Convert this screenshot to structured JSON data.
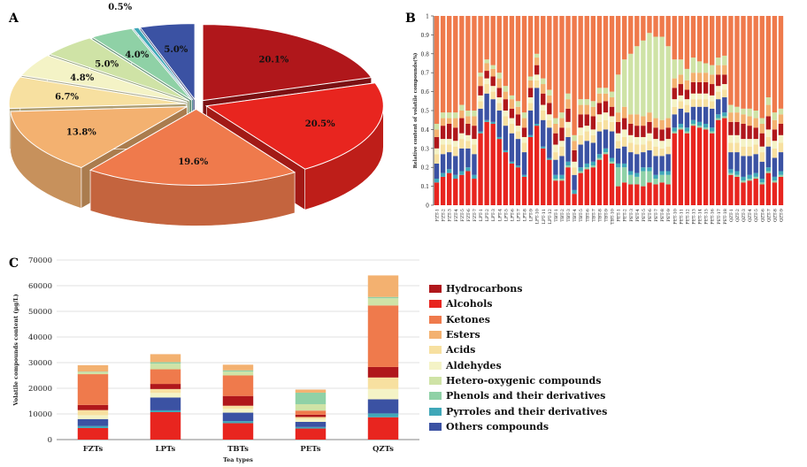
{
  "panels": {
    "a": "A",
    "b": "B",
    "c": "C"
  },
  "categories": [
    {
      "name": "Hydrocarbons",
      "color": "#b0171b"
    },
    {
      "name": "Alcohols",
      "color": "#e8251f"
    },
    {
      "name": "Ketones",
      "color": "#ef7a4c"
    },
    {
      "name": "Esters",
      "color": "#f3b170"
    },
    {
      "name": "Acids",
      "color": "#f7e0a0"
    },
    {
      "name": "Aldehydes",
      "color": "#f4f3c6"
    },
    {
      "name": "Hetero-oxygenic compounds",
      "color": "#cfe3a6"
    },
    {
      "name": "Phenols and their derivatives",
      "color": "#8fd1a6"
    },
    {
      "name": "Pyrroles and their derivatives",
      "color": "#3fa7b8"
    },
    {
      "name": "Others compounds",
      "color": "#3b52a3"
    }
  ],
  "chart_data": [
    {
      "panel": "A",
      "type": "pie",
      "slices": [
        {
          "category": "Hydrocarbons",
          "value": 20.1,
          "label": "20.1%"
        },
        {
          "category": "Alcohols",
          "value": 20.5,
          "label": "20.5%"
        },
        {
          "category": "Ketones",
          "value": 19.6,
          "label": "19.6%"
        },
        {
          "category": "Esters",
          "value": 13.8,
          "label": "13.8%"
        },
        {
          "category": "Acids",
          "value": 6.7,
          "label": "6.7%"
        },
        {
          "category": "Aldehydes",
          "value": 4.8,
          "label": "4.8%"
        },
        {
          "category": "Hetero-oxygenic compounds",
          "value": 5.0,
          "label": "5.0%"
        },
        {
          "category": "Phenols and their derivatives",
          "value": 4.0,
          "label": "4.0%"
        },
        {
          "category": "Pyrroles and their derivatives",
          "value": 0.5,
          "label": "0.5%"
        },
        {
          "category": "Others compounds",
          "value": 5.0,
          "label": "5.0%"
        }
      ]
    },
    {
      "panel": "B",
      "type": "bar",
      "stacked": true,
      "normalized": true,
      "ylabel": "Relative content of volatile compounds(%)",
      "ylim": [
        0,
        1
      ],
      "yticks": [
        "0",
        "0.1",
        "0.2",
        "0.3",
        "0.4",
        "0.5",
        "0.6",
        "0.7",
        "0.8",
        "0.9",
        "1"
      ],
      "categories": [
        "FZT-1",
        "FZT-2",
        "FZT-3",
        "FZT-4",
        "FZT-5",
        "FZT-6",
        "FZT-7",
        "LPT-1",
        "LPT-2",
        "LPT-3",
        "LPT-4",
        "LPT-5",
        "LPT-6",
        "LPT-7",
        "LPT-8",
        "LPT-9",
        "LPT-10",
        "LPT-11",
        "LPT-12",
        "TBT-1",
        "TBT-2",
        "TBT-3",
        "TBT-4",
        "TBT-5",
        "TBT-6",
        "TBT-7",
        "TBT-8",
        "TBT-9",
        "TBT-10",
        "PET-1",
        "PET-2",
        "PET-3",
        "PET-4",
        "PET-5",
        "PET-6",
        "PET-7",
        "PET-8",
        "PET-9",
        "PET-10",
        "PET-11",
        "PET-12",
        "PET-13",
        "PET-14",
        "PET-15",
        "PET-16",
        "PET-17",
        "PET-18",
        "QZT-1",
        "QZT-2",
        "QZT-3",
        "QZT-4",
        "QZT-5",
        "QZT-6",
        "QZT-7",
        "QZT-8",
        "QZT-9"
      ],
      "series_order": [
        "Alcohols",
        "Phenols and their derivatives",
        "Pyrroles and their derivatives",
        "Others compounds",
        "Acids",
        "Aldehydes",
        "Hydrocarbons",
        "Esters",
        "Hetero-oxygenic compounds",
        "Ketones"
      ],
      "values": [
        [
          0.12,
          0.0,
          0.02,
          0.08,
          0.05,
          0.03,
          0.06,
          0.04,
          0.03,
          0.57
        ],
        [
          0.15,
          0.0,
          0.02,
          0.1,
          0.05,
          0.03,
          0.07,
          0.04,
          0.03,
          0.51
        ],
        [
          0.17,
          0.0,
          0.02,
          0.09,
          0.04,
          0.03,
          0.08,
          0.03,
          0.03,
          0.51
        ],
        [
          0.14,
          0.0,
          0.02,
          0.1,
          0.05,
          0.03,
          0.07,
          0.05,
          0.03,
          0.51
        ],
        [
          0.16,
          0.0,
          0.02,
          0.12,
          0.05,
          0.03,
          0.08,
          0.04,
          0.03,
          0.47
        ],
        [
          0.18,
          0.0,
          0.02,
          0.1,
          0.04,
          0.03,
          0.06,
          0.04,
          0.03,
          0.5
        ],
        [
          0.14,
          0.0,
          0.02,
          0.11,
          0.05,
          0.03,
          0.07,
          0.05,
          0.03,
          0.5
        ],
        [
          0.38,
          0.0,
          0.01,
          0.12,
          0.04,
          0.03,
          0.05,
          0.05,
          0.02,
          0.3
        ],
        [
          0.44,
          0.0,
          0.01,
          0.14,
          0.05,
          0.03,
          0.04,
          0.04,
          0.02,
          0.23
        ],
        [
          0.43,
          0.0,
          0.01,
          0.12,
          0.04,
          0.03,
          0.05,
          0.04,
          0.02,
          0.26
        ],
        [
          0.35,
          0.0,
          0.01,
          0.14,
          0.04,
          0.03,
          0.05,
          0.05,
          0.03,
          0.3
        ],
        [
          0.28,
          0.0,
          0.01,
          0.13,
          0.05,
          0.03,
          0.06,
          0.04,
          0.03,
          0.37
        ],
        [
          0.22,
          0.0,
          0.01,
          0.15,
          0.05,
          0.03,
          0.05,
          0.05,
          0.02,
          0.42
        ],
        [
          0.2,
          0.0,
          0.01,
          0.14,
          0.04,
          0.03,
          0.06,
          0.04,
          0.03,
          0.45
        ],
        [
          0.15,
          0.0,
          0.01,
          0.12,
          0.05,
          0.03,
          0.05,
          0.05,
          0.03,
          0.51
        ],
        [
          0.36,
          0.0,
          0.01,
          0.13,
          0.04,
          0.03,
          0.05,
          0.04,
          0.02,
          0.32
        ],
        [
          0.42,
          0.0,
          0.01,
          0.19,
          0.04,
          0.03,
          0.05,
          0.04,
          0.02,
          0.2
        ],
        [
          0.3,
          0.0,
          0.01,
          0.14,
          0.05,
          0.03,
          0.06,
          0.05,
          0.03,
          0.33
        ],
        [
          0.24,
          0.0,
          0.01,
          0.16,
          0.04,
          0.03,
          0.06,
          0.04,
          0.03,
          0.39
        ],
        [
          0.13,
          0.01,
          0.02,
          0.08,
          0.04,
          0.04,
          0.06,
          0.05,
          0.03,
          0.54
        ],
        [
          0.13,
          0.01,
          0.02,
          0.1,
          0.05,
          0.03,
          0.07,
          0.05,
          0.03,
          0.51
        ],
        [
          0.2,
          0.01,
          0.02,
          0.13,
          0.05,
          0.03,
          0.07,
          0.05,
          0.03,
          0.41
        ],
        [
          0.06,
          0.0,
          0.02,
          0.08,
          0.04,
          0.03,
          0.06,
          0.05,
          0.03,
          0.63
        ],
        [
          0.17,
          0.01,
          0.02,
          0.12,
          0.05,
          0.04,
          0.07,
          0.05,
          0.03,
          0.44
        ],
        [
          0.19,
          0.01,
          0.02,
          0.12,
          0.05,
          0.03,
          0.06,
          0.05,
          0.03,
          0.44
        ],
        [
          0.2,
          0.01,
          0.02,
          0.1,
          0.04,
          0.03,
          0.07,
          0.05,
          0.03,
          0.45
        ],
        [
          0.24,
          0.01,
          0.02,
          0.12,
          0.05,
          0.04,
          0.06,
          0.05,
          0.03,
          0.38
        ],
        [
          0.27,
          0.01,
          0.02,
          0.1,
          0.05,
          0.04,
          0.06,
          0.04,
          0.03,
          0.38
        ],
        [
          0.22,
          0.01,
          0.02,
          0.14,
          0.05,
          0.03,
          0.05,
          0.05,
          0.03,
          0.4
        ],
        [
          0.1,
          0.1,
          0.02,
          0.08,
          0.04,
          0.04,
          0.06,
          0.05,
          0.2,
          0.31
        ],
        [
          0.12,
          0.08,
          0.02,
          0.09,
          0.05,
          0.04,
          0.06,
          0.06,
          0.25,
          0.23
        ],
        [
          0.11,
          0.05,
          0.02,
          0.1,
          0.05,
          0.04,
          0.06,
          0.05,
          0.32,
          0.2
        ],
        [
          0.11,
          0.04,
          0.02,
          0.1,
          0.05,
          0.04,
          0.06,
          0.06,
          0.36,
          0.16
        ],
        [
          0.1,
          0.08,
          0.02,
          0.08,
          0.04,
          0.04,
          0.06,
          0.05,
          0.4,
          0.13
        ],
        [
          0.12,
          0.06,
          0.02,
          0.09,
          0.05,
          0.04,
          0.06,
          0.05,
          0.42,
          0.09
        ],
        [
          0.11,
          0.03,
          0.02,
          0.1,
          0.05,
          0.04,
          0.06,
          0.05,
          0.43,
          0.11
        ],
        [
          0.12,
          0.04,
          0.02,
          0.08,
          0.04,
          0.04,
          0.06,
          0.05,
          0.44,
          0.11
        ],
        [
          0.11,
          0.05,
          0.02,
          0.09,
          0.04,
          0.04,
          0.06,
          0.05,
          0.38,
          0.16
        ],
        [
          0.38,
          0.01,
          0.02,
          0.07,
          0.04,
          0.04,
          0.06,
          0.05,
          0.1,
          0.23
        ],
        [
          0.4,
          0.01,
          0.02,
          0.08,
          0.04,
          0.03,
          0.06,
          0.05,
          0.08,
          0.23
        ],
        [
          0.38,
          0.01,
          0.02,
          0.08,
          0.04,
          0.03,
          0.05,
          0.05,
          0.06,
          0.28
        ],
        [
          0.42,
          0.01,
          0.02,
          0.07,
          0.04,
          0.03,
          0.06,
          0.05,
          0.08,
          0.22
        ],
        [
          0.41,
          0.01,
          0.02,
          0.08,
          0.04,
          0.03,
          0.06,
          0.05,
          0.06,
          0.24
        ],
        [
          0.4,
          0.01,
          0.02,
          0.09,
          0.04,
          0.03,
          0.06,
          0.05,
          0.05,
          0.25
        ],
        [
          0.38,
          0.01,
          0.02,
          0.1,
          0.04,
          0.03,
          0.06,
          0.05,
          0.05,
          0.26
        ],
        [
          0.45,
          0.01,
          0.02,
          0.08,
          0.04,
          0.03,
          0.06,
          0.05,
          0.04,
          0.22
        ],
        [
          0.46,
          0.01,
          0.02,
          0.08,
          0.04,
          0.03,
          0.05,
          0.05,
          0.05,
          0.21
        ],
        [
          0.16,
          0.01,
          0.02,
          0.09,
          0.05,
          0.04,
          0.07,
          0.05,
          0.04,
          0.47
        ],
        [
          0.15,
          0.01,
          0.02,
          0.1,
          0.05,
          0.04,
          0.07,
          0.05,
          0.03,
          0.48
        ],
        [
          0.12,
          0.01,
          0.02,
          0.11,
          0.05,
          0.04,
          0.08,
          0.05,
          0.03,
          0.49
        ],
        [
          0.13,
          0.01,
          0.02,
          0.1,
          0.05,
          0.04,
          0.07,
          0.05,
          0.04,
          0.49
        ],
        [
          0.14,
          0.01,
          0.02,
          0.1,
          0.05,
          0.03,
          0.06,
          0.05,
          0.04,
          0.5
        ],
        [
          0.11,
          0.01,
          0.02,
          0.09,
          0.05,
          0.03,
          0.07,
          0.05,
          0.03,
          0.54
        ],
        [
          0.17,
          0.01,
          0.02,
          0.11,
          0.05,
          0.04,
          0.07,
          0.06,
          0.04,
          0.43
        ],
        [
          0.12,
          0.01,
          0.02,
          0.1,
          0.05,
          0.04,
          0.06,
          0.05,
          0.04,
          0.51
        ],
        [
          0.15,
          0.01,
          0.02,
          0.1,
          0.05,
          0.04,
          0.06,
          0.05,
          0.03,
          0.49
        ]
      ]
    },
    {
      "panel": "C",
      "type": "bar",
      "stacked": true,
      "xlabel": "Tea types",
      "ylabel": "Volatile compounds content (μg/L)",
      "ylim": [
        0,
        70000
      ],
      "yticks": [
        "0",
        "10000",
        "20000",
        "30000",
        "40000",
        "50000",
        "60000",
        "70000"
      ],
      "categories": [
        "FZTs",
        "LPTs",
        "TBTs",
        "PETs",
        "QZTs"
      ],
      "series_order": [
        "Alcohols",
        "Pyrroles and their derivatives",
        "Others compounds",
        "Aldehydes",
        "Acids",
        "Hydrocarbons",
        "Ketones",
        "Hetero-oxygenic compounds",
        "Phenols and their derivatives",
        "Esters"
      ],
      "values": [
        [
          4500,
          800,
          2700,
          1500,
          2000,
          2000,
          12000,
          800,
          200,
          2500
        ],
        [
          10700,
          700,
          5000,
          1800,
          1500,
          2000,
          5700,
          2200,
          600,
          3100
        ],
        [
          6400,
          800,
          3300,
          1500,
          1200,
          3800,
          8000,
          1500,
          500,
          2200
        ],
        [
          4300,
          600,
          2000,
          1200,
          700,
          900,
          1600,
          2500,
          4500,
          1200
        ],
        [
          8700,
          1500,
          5500,
          4000,
          4500,
          4100,
          24000,
          2800,
          500,
          8400
        ]
      ]
    }
  ]
}
